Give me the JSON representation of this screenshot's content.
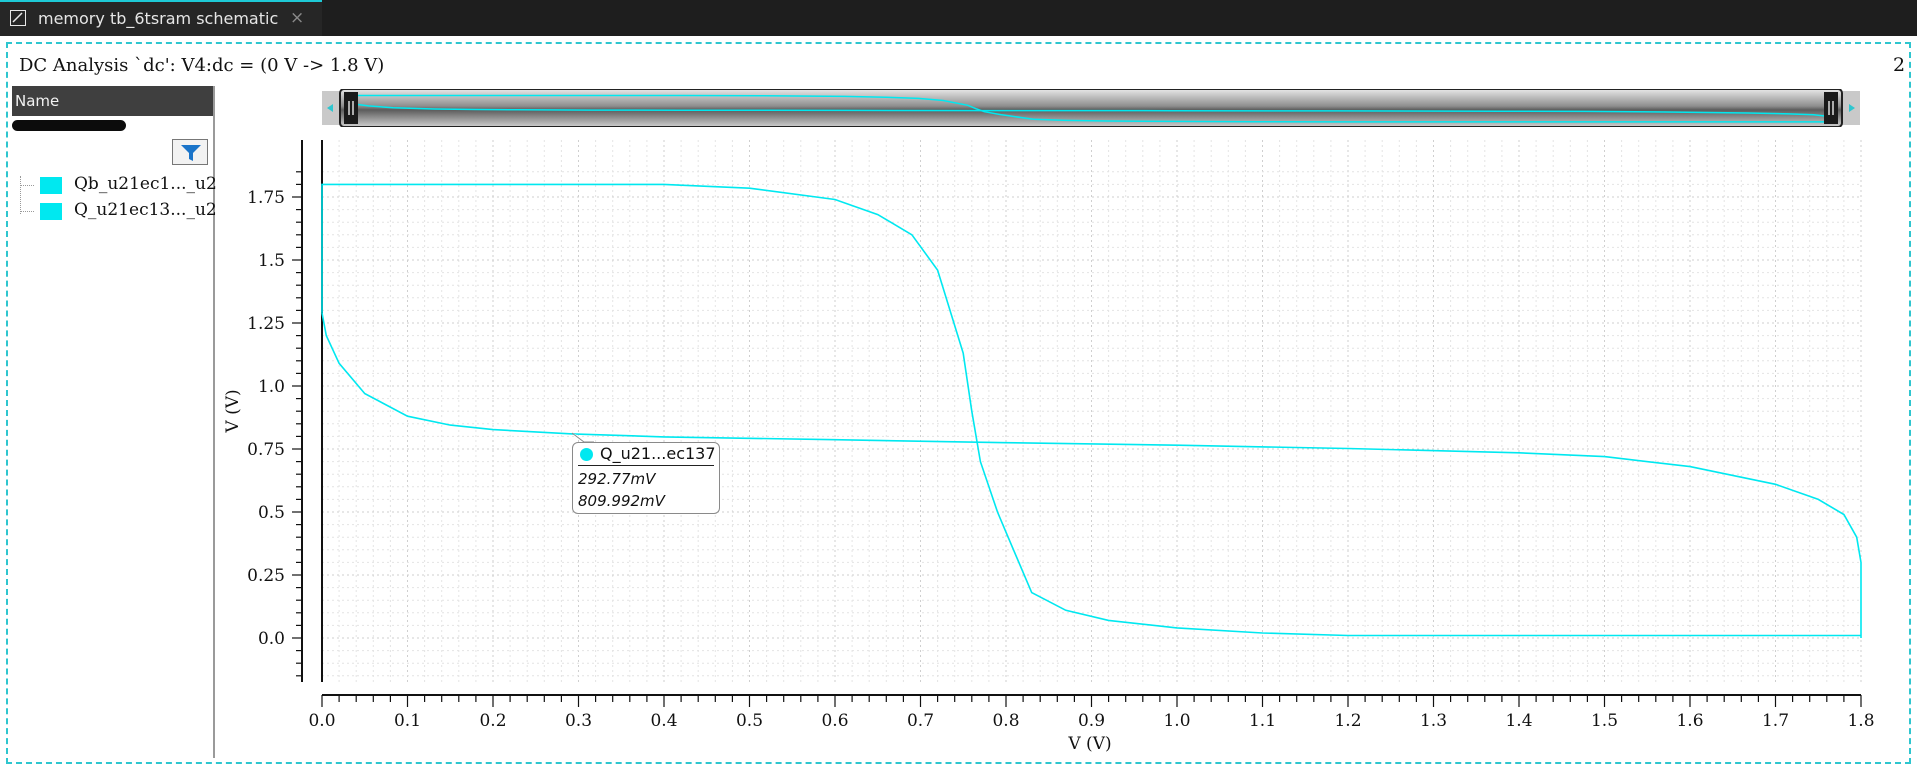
{
  "tab": {
    "title": "memory tb_6tsram schematic",
    "close_glyph": "×",
    "icon": "schematic-icon"
  },
  "analysis": {
    "title": "DC Analysis `dc': V4:dc = (0 V -> 1.8 V)",
    "page_number": "2"
  },
  "sidebar": {
    "header": "Name",
    "filter_icon": "filter-icon",
    "items": [
      {
        "label": "Qb_u21ec1..._u2",
        "color": "#00e8f0"
      },
      {
        "label": "Q_u21ec13..._u2",
        "color": "#00e8f0"
      }
    ]
  },
  "tooltip": {
    "series": "Q_u21...ec137",
    "x_value": "292.77mV",
    "y_value": "809.992mV"
  },
  "colors": {
    "trace": "#00e8f0",
    "accent": "#2ec6cf",
    "tab_bar": "#1e1e1e"
  },
  "chart_data": {
    "type": "line",
    "xlabel": "V (V)",
    "ylabel": "V (V)",
    "xlim": [
      0,
      1.8
    ],
    "ylim": [
      -0.17,
      1.9
    ],
    "x_ticks": [
      "0.0",
      "0.1",
      "0.2",
      "0.3",
      "0.4",
      "0.5",
      "0.6",
      "0.7",
      "0.8",
      "0.9",
      "1.0",
      "1.1",
      "1.2",
      "1.3",
      "1.4",
      "1.5",
      "1.6",
      "1.7",
      "1.8"
    ],
    "y_ticks": [
      "0.0",
      "0.25",
      "0.5",
      "0.75",
      "1.0",
      "1.25",
      "1.5",
      "1.75"
    ],
    "grid": true,
    "series": [
      {
        "name": "Qb_u21ec1..._u2",
        "x": [
          0,
          0,
          0.1,
          0.2,
          0.3,
          0.4,
          0.5,
          0.6,
          0.65,
          0.69,
          0.72,
          0.75,
          0.76,
          0.77,
          0.79,
          0.8,
          0.83,
          0.87,
          0.92,
          1.0,
          1.1,
          1.2,
          1.3,
          1.4,
          1.5,
          1.6,
          1.7,
          1.8,
          1.8
        ],
        "y": [
          1.29,
          1.8,
          1.8,
          1.8,
          1.8,
          1.8,
          1.785,
          1.74,
          1.68,
          1.6,
          1.46,
          1.13,
          0.9,
          0.7,
          0.5,
          0.42,
          0.18,
          0.11,
          0.07,
          0.04,
          0.02,
          0.01,
          0.01,
          0.01,
          0.01,
          0.01,
          0.01,
          0.01,
          0.01
        ]
      },
      {
        "name": "Q_u21ec13..._u2",
        "x": [
          0,
          0.005,
          0.02,
          0.05,
          0.1,
          0.15,
          0.2,
          0.29277,
          0.4,
          0.6,
          0.8,
          1.0,
          1.2,
          1.4,
          1.5,
          1.6,
          1.7,
          1.75,
          1.78,
          1.795,
          1.8,
          1.8
        ],
        "y": [
          1.29,
          1.2,
          1.09,
          0.97,
          0.88,
          0.845,
          0.827,
          0.81,
          0.798,
          0.787,
          0.775,
          0.765,
          0.752,
          0.735,
          0.72,
          0.68,
          0.61,
          0.55,
          0.49,
          0.4,
          0.3,
          0.0
        ]
      }
    ]
  }
}
